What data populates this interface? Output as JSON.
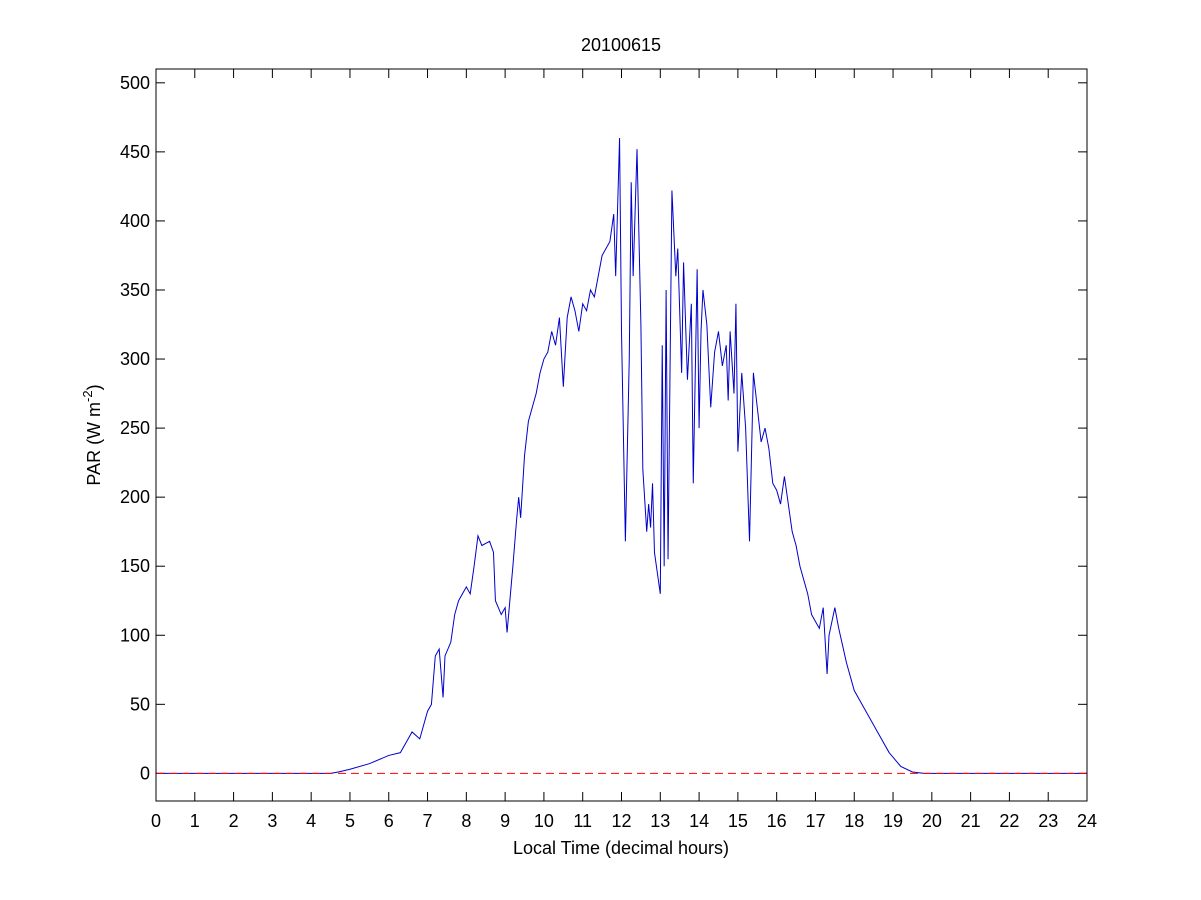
{
  "chart_data": {
    "type": "line",
    "title": "20100615",
    "x_label": "Local Time (decimal hours)",
    "y_label": {
      "text": "PAR (W m",
      "superscript": "-2",
      "suffix": ")"
    },
    "xlim": [
      0,
      24
    ],
    "xticks": [
      0,
      1,
      2,
      3,
      4,
      5,
      6,
      7,
      8,
      9,
      10,
      11,
      12,
      13,
      14,
      15,
      16,
      17,
      18,
      19,
      20,
      21,
      22,
      23,
      24
    ],
    "ylim": [
      -20,
      510
    ],
    "yticks": [
      0,
      50,
      100,
      150,
      200,
      250,
      300,
      350,
      400,
      450,
      500
    ],
    "grid": false,
    "reference_line": {
      "value": 0,
      "color": "#ff0000",
      "style": "dashed"
    },
    "series": [
      {
        "color": "#0000cc",
        "x": [
          0,
          4.5,
          4.7,
          5,
          5.5,
          6,
          6.3,
          6.5,
          6.6,
          6.8,
          6.9,
          7,
          7.1,
          7.2,
          7.3,
          7.4,
          7.45,
          7.6,
          7.7,
          7.8,
          8,
          8.1,
          8.2,
          8.3,
          8.4,
          8.6,
          8.7,
          8.75,
          8.9,
          9,
          9.05,
          9.2,
          9.3,
          9.35,
          9.4,
          9.5,
          9.6,
          9.7,
          9.8,
          9.9,
          10,
          10.1,
          10.2,
          10.3,
          10.4,
          10.5,
          10.6,
          10.7,
          10.8,
          10.9,
          11,
          11.1,
          11.2,
          11.3,
          11.5,
          11.7,
          11.8,
          11.85,
          11.95,
          12,
          12.1,
          12.2,
          12.25,
          12.3,
          12.4,
          12.5,
          12.55,
          12.65,
          12.7,
          12.75,
          12.8,
          12.85,
          12.95,
          13,
          13.05,
          13.1,
          13.15,
          13.2,
          13.3,
          13.4,
          13.45,
          13.55,
          13.6,
          13.7,
          13.8,
          13.85,
          13.95,
          14,
          14.05,
          14.1,
          14.2,
          14.3,
          14.4,
          14.5,
          14.6,
          14.7,
          14.75,
          14.8,
          14.9,
          14.95,
          15,
          15.1,
          15.2,
          15.3,
          15.4,
          15.5,
          15.6,
          15.7,
          15.8,
          15.9,
          16,
          16.1,
          16.2,
          16.3,
          16.4,
          16.5,
          16.6,
          16.8,
          16.9,
          17,
          17.1,
          17.2,
          17.3,
          17.35,
          17.5,
          17.6,
          17.8,
          18,
          18.3,
          18.6,
          18.9,
          19.2,
          19.5,
          19.8,
          24
        ],
        "values": [
          0,
          0,
          1,
          3,
          7,
          13,
          15,
          25,
          30,
          25,
          35,
          45,
          50,
          85,
          90,
          55,
          85,
          95,
          115,
          125,
          135,
          130,
          150,
          172,
          165,
          168,
          160,
          125,
          115,
          120,
          102,
          150,
          185,
          200,
          185,
          230,
          255,
          265,
          275,
          290,
          300,
          305,
          320,
          310,
          330,
          280,
          330,
          345,
          335,
          320,
          340,
          335,
          350,
          345,
          375,
          385,
          405,
          360,
          460,
          320,
          168,
          300,
          428,
          360,
          452,
          325,
          220,
          175,
          195,
          178,
          210,
          160,
          140,
          130,
          310,
          150,
          350,
          155,
          422,
          360,
          380,
          290,
          370,
          285,
          340,
          210,
          365,
          250,
          320,
          350,
          325,
          265,
          305,
          320,
          295,
          310,
          270,
          320,
          275,
          340,
          233,
          290,
          250,
          168,
          290,
          265,
          240,
          250,
          235,
          210,
          205,
          195,
          215,
          195,
          175,
          165,
          150,
          130,
          115,
          110,
          105,
          120,
          72,
          100,
          120,
          105,
          80,
          60,
          45,
          30,
          15,
          5,
          1,
          0,
          0
        ]
      }
    ]
  }
}
